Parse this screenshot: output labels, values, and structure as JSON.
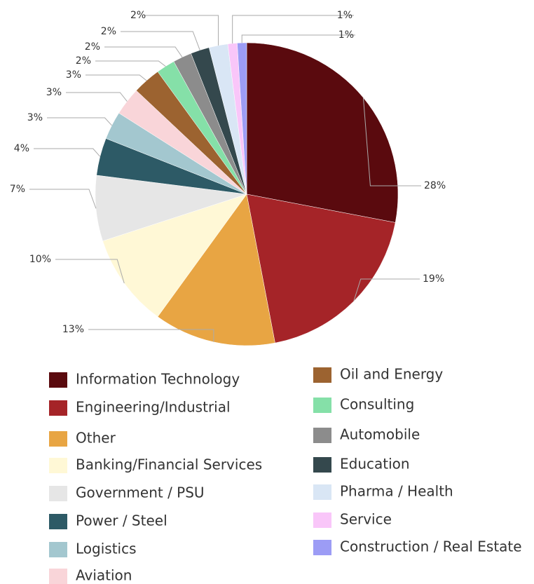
{
  "chart_data": {
    "type": "pie",
    "categories": [
      "Information Technology",
      "Engineering/Industrial",
      "Other",
      "Banking/Financial Services",
      "Government / PSU",
      "Power / Steel",
      "Logistics",
      "Aviation",
      "Oil and Energy",
      "Consulting",
      "Automobile",
      "Education",
      "Pharma / Health",
      "Service",
      "Construction / Real Estate"
    ],
    "values": [
      28,
      19,
      13,
      10,
      7,
      4,
      3,
      3,
      3,
      2,
      2,
      2,
      2,
      1,
      1
    ],
    "value_labels": [
      "28%",
      "19%",
      "13%",
      "10%",
      "7%",
      "4%",
      "3%",
      "3%",
      "3%",
      "2%",
      "2%",
      "2%",
      "2%",
      "1%",
      "1%"
    ],
    "colors": [
      "#5a0a0e",
      "#a52428",
      "#e8a543",
      "#fff8d6",
      "#e6e6e6",
      "#2d5a66",
      "#a3c7cf",
      "#f9d5d9",
      "#9c6330",
      "#85e0a8",
      "#8c8c8c",
      "#34484d",
      "#d9e6f5",
      "#f9c6f9",
      "#9c9cf5"
    ],
    "legend": true
  }
}
